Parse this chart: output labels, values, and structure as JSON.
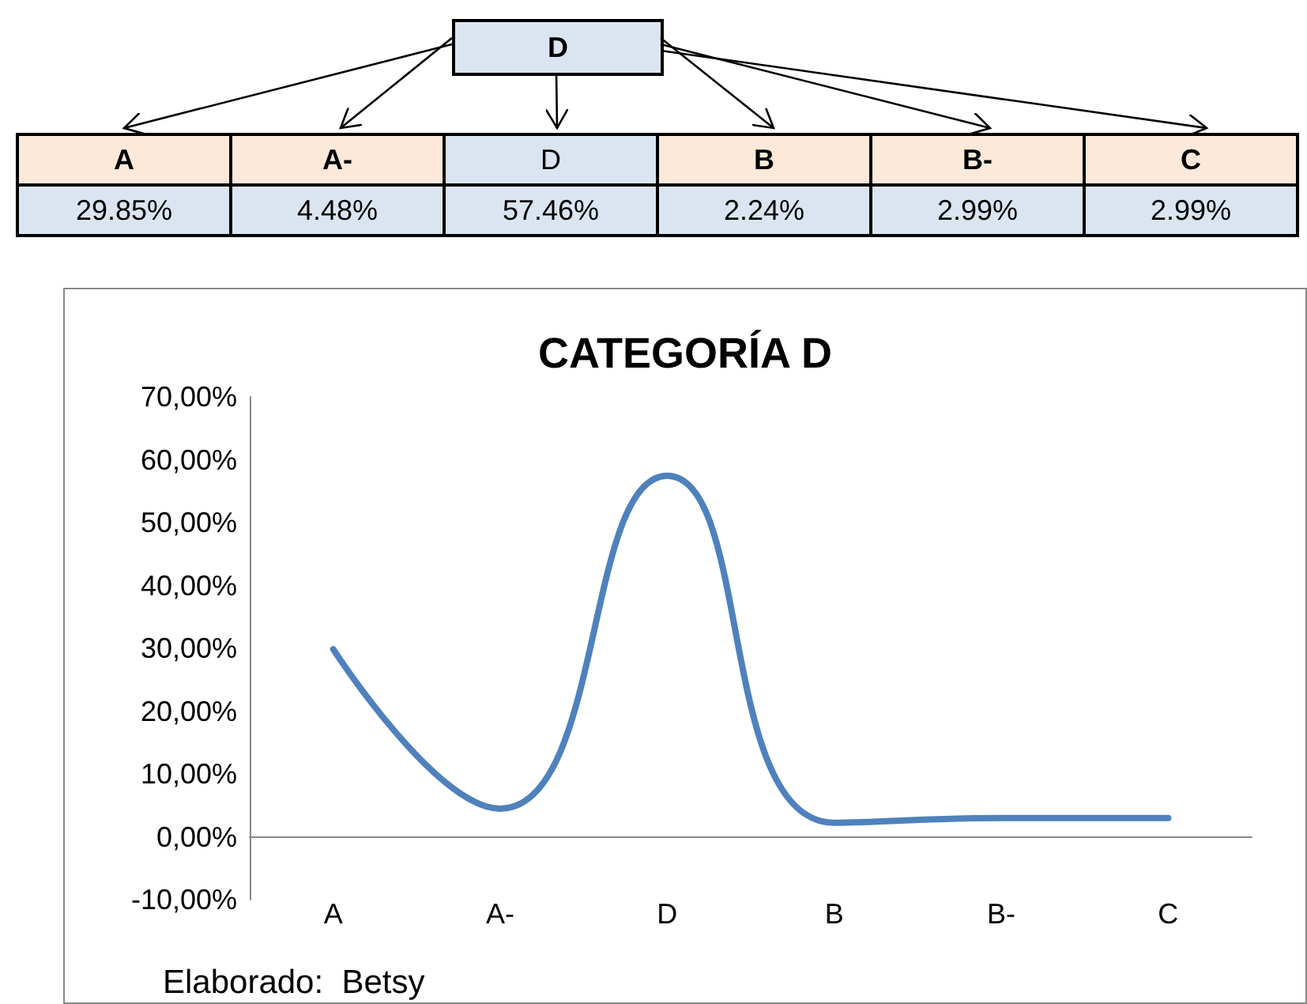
{
  "chart_data": [
    {
      "type": "other",
      "annotations": [
        "D"
      ],
      "categories": [
        "A",
        "A-",
        "D",
        "B",
        "B-",
        "C"
      ],
      "value_labels": [
        "29.85%",
        "4.48%",
        "57.46%",
        "2.24%",
        "2.99%",
        "2.99%"
      ]
    },
    {
      "type": "line",
      "title": "CATEGORÍA D",
      "categories": [
        "A",
        "A-",
        "D",
        "B",
        "B-",
        "C"
      ],
      "series": [
        {
          "color": "#4f81bd",
          "values": [
            29.85,
            4.48,
            57.46,
            2.24,
            2.99,
            2.99
          ]
        }
      ],
      "ylim": [
        -10,
        70
      ],
      "yticks": [
        {
          "value": -10,
          "label": "-10,00%"
        },
        {
          "value": 0,
          "label": "0,00%"
        },
        {
          "value": 10,
          "label": "10,00%"
        },
        {
          "value": 20,
          "label": "20,00%"
        },
        {
          "value": 30,
          "label": "30,00%"
        },
        {
          "value": 40,
          "label": "40,00%"
        },
        {
          "value": 50,
          "label": "50,00%"
        },
        {
          "value": 60,
          "label": "60,00%"
        },
        {
          "value": 70,
          "label": "70,00%"
        }
      ],
      "grid": false,
      "marker": "none",
      "line_style": "solid",
      "annotations": [
        "Elaborado:  Betsy"
      ]
    }
  ]
}
